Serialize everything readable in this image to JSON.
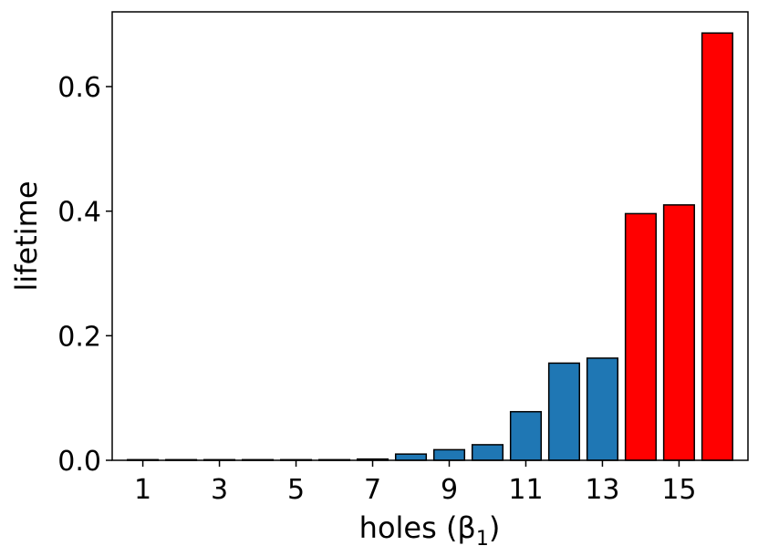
{
  "chart_data": {
    "type": "bar",
    "categories": [
      "1",
      "2",
      "3",
      "4",
      "5",
      "6",
      "7",
      "8",
      "9",
      "10",
      "11",
      "12",
      "13",
      "14",
      "15",
      "16"
    ],
    "values": [
      0.001,
      0.001,
      0.001,
      0.001,
      0.001,
      0.001,
      0.002,
      0.01,
      0.017,
      0.025,
      0.078,
      0.156,
      0.164,
      0.396,
      0.41,
      0.686
    ],
    "bar_colors": [
      "#1f77b4",
      "#1f77b4",
      "#1f77b4",
      "#1f77b4",
      "#1f77b4",
      "#1f77b4",
      "#1f77b4",
      "#1f77b4",
      "#1f77b4",
      "#1f77b4",
      "#1f77b4",
      "#1f77b4",
      "#1f77b4",
      "#ff0000",
      "#ff0000",
      "#ff0000"
    ],
    "edge_color": "#000000",
    "x_ticks": [
      "1",
      "3",
      "5",
      "7",
      "9",
      "11",
      "13",
      "15"
    ],
    "y_ticks": [
      "0.0",
      "0.2",
      "0.4",
      "0.6"
    ],
    "y_tick_values": [
      0.0,
      0.2,
      0.4,
      0.6
    ],
    "xlim": [
      0.2,
      16.8
    ],
    "ylim": [
      0,
      0.72
    ],
    "xlabel": "holes (β",
    "xlabel_sub": "1",
    "xlabel_close": ")",
    "ylabel": "lifetime",
    "grid": false,
    "legend": "none"
  }
}
